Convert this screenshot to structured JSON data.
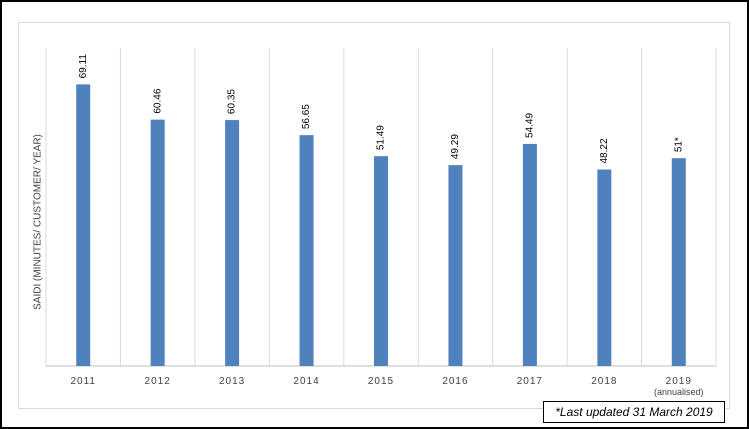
{
  "chart_data": {
    "type": "bar",
    "ylabel": "SAIDI (MINUTES/ CUSTOMER/ YEAR)",
    "xlabel": "",
    "categories": [
      "2011",
      "2012",
      "2013",
      "2014",
      "2015",
      "2016",
      "2017",
      "2018",
      "2019\n(annualised)"
    ],
    "values": [
      69.11,
      60.46,
      60.35,
      56.65,
      51.49,
      49.29,
      54.49,
      48.22,
      51
    ],
    "data_labels": [
      "69.11",
      "60.46",
      "60.35",
      "56.65",
      "51.49",
      "49.29",
      "54.49",
      "48.22",
      "51*"
    ],
    "ylim": [
      0,
      80
    ],
    "grid": "vertical",
    "legend": "none",
    "bar_color": "#4f81bd"
  },
  "footnote": "*Last updated 31 March 2019"
}
